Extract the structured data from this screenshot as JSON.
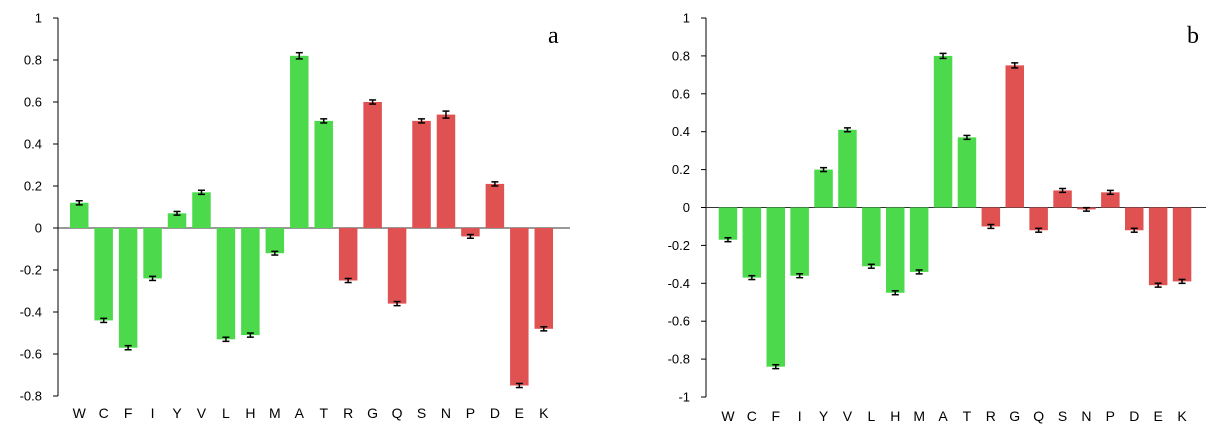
{
  "chart_data": [
    {
      "type": "bar",
      "panel_label": "a",
      "categories": [
        "W",
        "C",
        "F",
        "I",
        "Y",
        "V",
        "L",
        "H",
        "M",
        "A",
        "T",
        "R",
        "G",
        "Q",
        "S",
        "N",
        "P",
        "D",
        "E",
        "K"
      ],
      "values": [
        0.12,
        -0.44,
        -0.57,
        -0.24,
        0.07,
        0.17,
        -0.53,
        -0.51,
        -0.12,
        0.82,
        0.51,
        -0.25,
        0.6,
        -0.36,
        0.51,
        0.54,
        -0.04,
        0.21,
        -0.75,
        -0.48
      ],
      "errors": [
        0.005,
        0.005,
        0.005,
        0.005,
        0.004,
        0.005,
        0.005,
        0.005,
        0.004,
        0.01,
        0.005,
        0.005,
        0.005,
        0.005,
        0.005,
        0.012,
        0.004,
        0.005,
        0.005,
        0.005
      ],
      "groups": [
        "green",
        "green",
        "green",
        "green",
        "green",
        "green",
        "green",
        "green",
        "green",
        "green",
        "green",
        "red",
        "red",
        "red",
        "red",
        "red",
        "red",
        "red",
        "red",
        "red"
      ],
      "ylim": [
        -0.8,
        1
      ],
      "yticks": [
        -0.8,
        -0.6,
        -0.4,
        -0.2,
        0,
        0.2,
        0.4,
        0.6,
        0.8,
        1
      ],
      "ytick_labels": [
        "-0.8",
        "-0.6",
        "-0.4",
        "-0.2",
        "0",
        "0.2",
        "0.4",
        "0.6",
        "0.8",
        "1"
      ],
      "title": "",
      "xlabel": "",
      "ylabel": "",
      "grid": false,
      "legend": "none"
    },
    {
      "type": "bar",
      "panel_label": "b",
      "categories": [
        "W",
        "C",
        "F",
        "I",
        "Y",
        "V",
        "L",
        "H",
        "M",
        "A",
        "T",
        "R",
        "G",
        "Q",
        "S",
        "N",
        "P",
        "D",
        "E",
        "K"
      ],
      "values": [
        -0.17,
        -0.37,
        -0.84,
        -0.36,
        0.2,
        0.41,
        -0.31,
        -0.45,
        -0.34,
        0.8,
        0.37,
        -0.1,
        0.75,
        -0.12,
        0.09,
        -0.01,
        0.08,
        -0.12,
        -0.41,
        -0.39
      ],
      "errors": [
        0.005,
        0.005,
        0.005,
        0.005,
        0.005,
        0.005,
        0.005,
        0.005,
        0.005,
        0.008,
        0.005,
        0.005,
        0.008,
        0.005,
        0.005,
        0.004,
        0.005,
        0.005,
        0.005,
        0.005
      ],
      "groups": [
        "green",
        "green",
        "green",
        "green",
        "green",
        "green",
        "green",
        "green",
        "green",
        "green",
        "green",
        "red",
        "red",
        "red",
        "red",
        "red",
        "red",
        "red",
        "red",
        "red"
      ],
      "ylim": [
        -1,
        1
      ],
      "yticks": [
        -1,
        -0.8,
        -0.6,
        -0.4,
        -0.2,
        0,
        0.2,
        0.4,
        0.6,
        0.8,
        1
      ],
      "ytick_labels": [
        "-1",
        "-0.8",
        "-0.6",
        "-0.4",
        "-0.2",
        "0",
        "0.2",
        "0.4",
        "0.6",
        "0.8",
        "1"
      ],
      "title": "",
      "xlabel": "",
      "ylabel": "",
      "grid": false,
      "legend": "none"
    }
  ],
  "colors": {
    "green": "#4cd94c",
    "red": "#e05252",
    "axis": "#000000",
    "error_bar": "#000000"
  }
}
